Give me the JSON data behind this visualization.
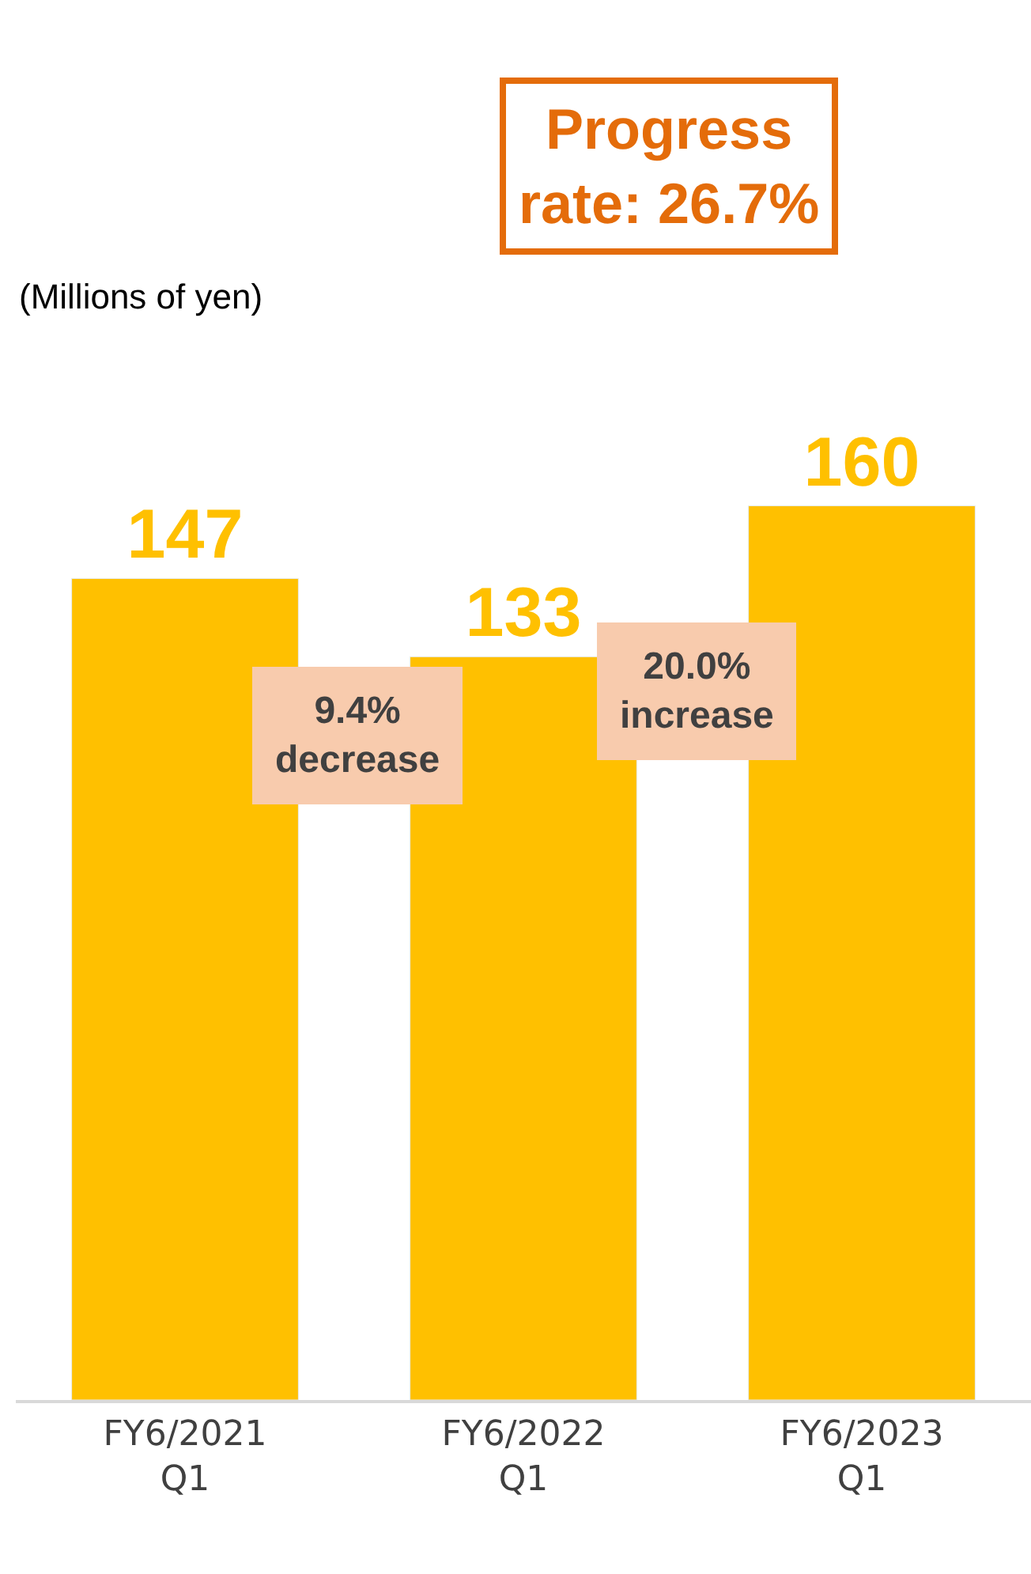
{
  "chart_data": {
    "type": "bar",
    "categories": [
      "FY6/2021\nQ1",
      "FY6/2022\nQ1",
      "FY6/2023\nQ1"
    ],
    "values": [
      147,
      133,
      160
    ],
    "color": "#ffc000",
    "data_labels": true,
    "tick_labels": "x",
    "annotations": [
      "(Millions of yen)",
      "Progress\nrate: 26.7%",
      "9.4%\ndecrease",
      "20.0%\nincrease"
    ]
  }
}
